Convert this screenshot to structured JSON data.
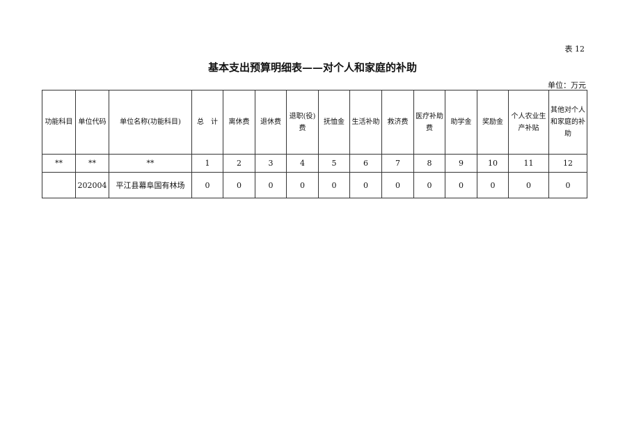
{
  "table_no": "表 12",
  "title": "基本支出预算明细表——对个人和家庭的补助",
  "unit": "单位：万元",
  "headers": [
    "功能科目",
    "单位代码",
    "单位名称(功能科目)",
    "总　计",
    "离休费",
    "退休费",
    "退职(役)费",
    "抚恤金",
    "生活补助",
    "救济费",
    "医疗补助费",
    "助学金",
    "奖励金",
    "个人农业生产补贴",
    "其他对个人和家庭的补助"
  ],
  "index_row": [
    "**",
    "**",
    "**",
    "1",
    "2",
    "3",
    "4",
    "5",
    "6",
    "7",
    "8",
    "9",
    "10",
    "11",
    "12"
  ],
  "rows": [
    [
      "",
      "202004",
      "平江县幕阜国有林场",
      "0",
      "0",
      "0",
      "0",
      "0",
      "0",
      "0",
      "0",
      "0",
      "0",
      "0",
      "0"
    ]
  ]
}
